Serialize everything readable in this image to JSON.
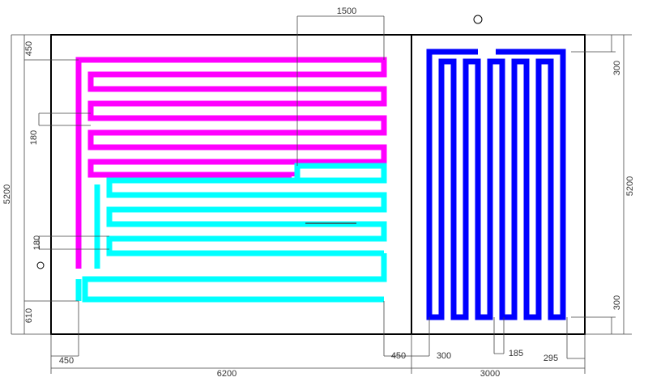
{
  "dimensions": {
    "top": "1500",
    "left_top": "450",
    "left_spacing_upper": "180",
    "left_total": "5200",
    "left_spacing_lower": "180",
    "left_bottom": "610",
    "bottom_left_offset": "450",
    "bottom_left_total": "6200",
    "bottom_right_offset": "450",
    "right_room_offset": "300",
    "right_room_spacing": "185",
    "right_room_end": "295",
    "bottom_right_total": "3000",
    "right_top": "300",
    "right_total": "5200",
    "right_bottom": "300"
  }
}
